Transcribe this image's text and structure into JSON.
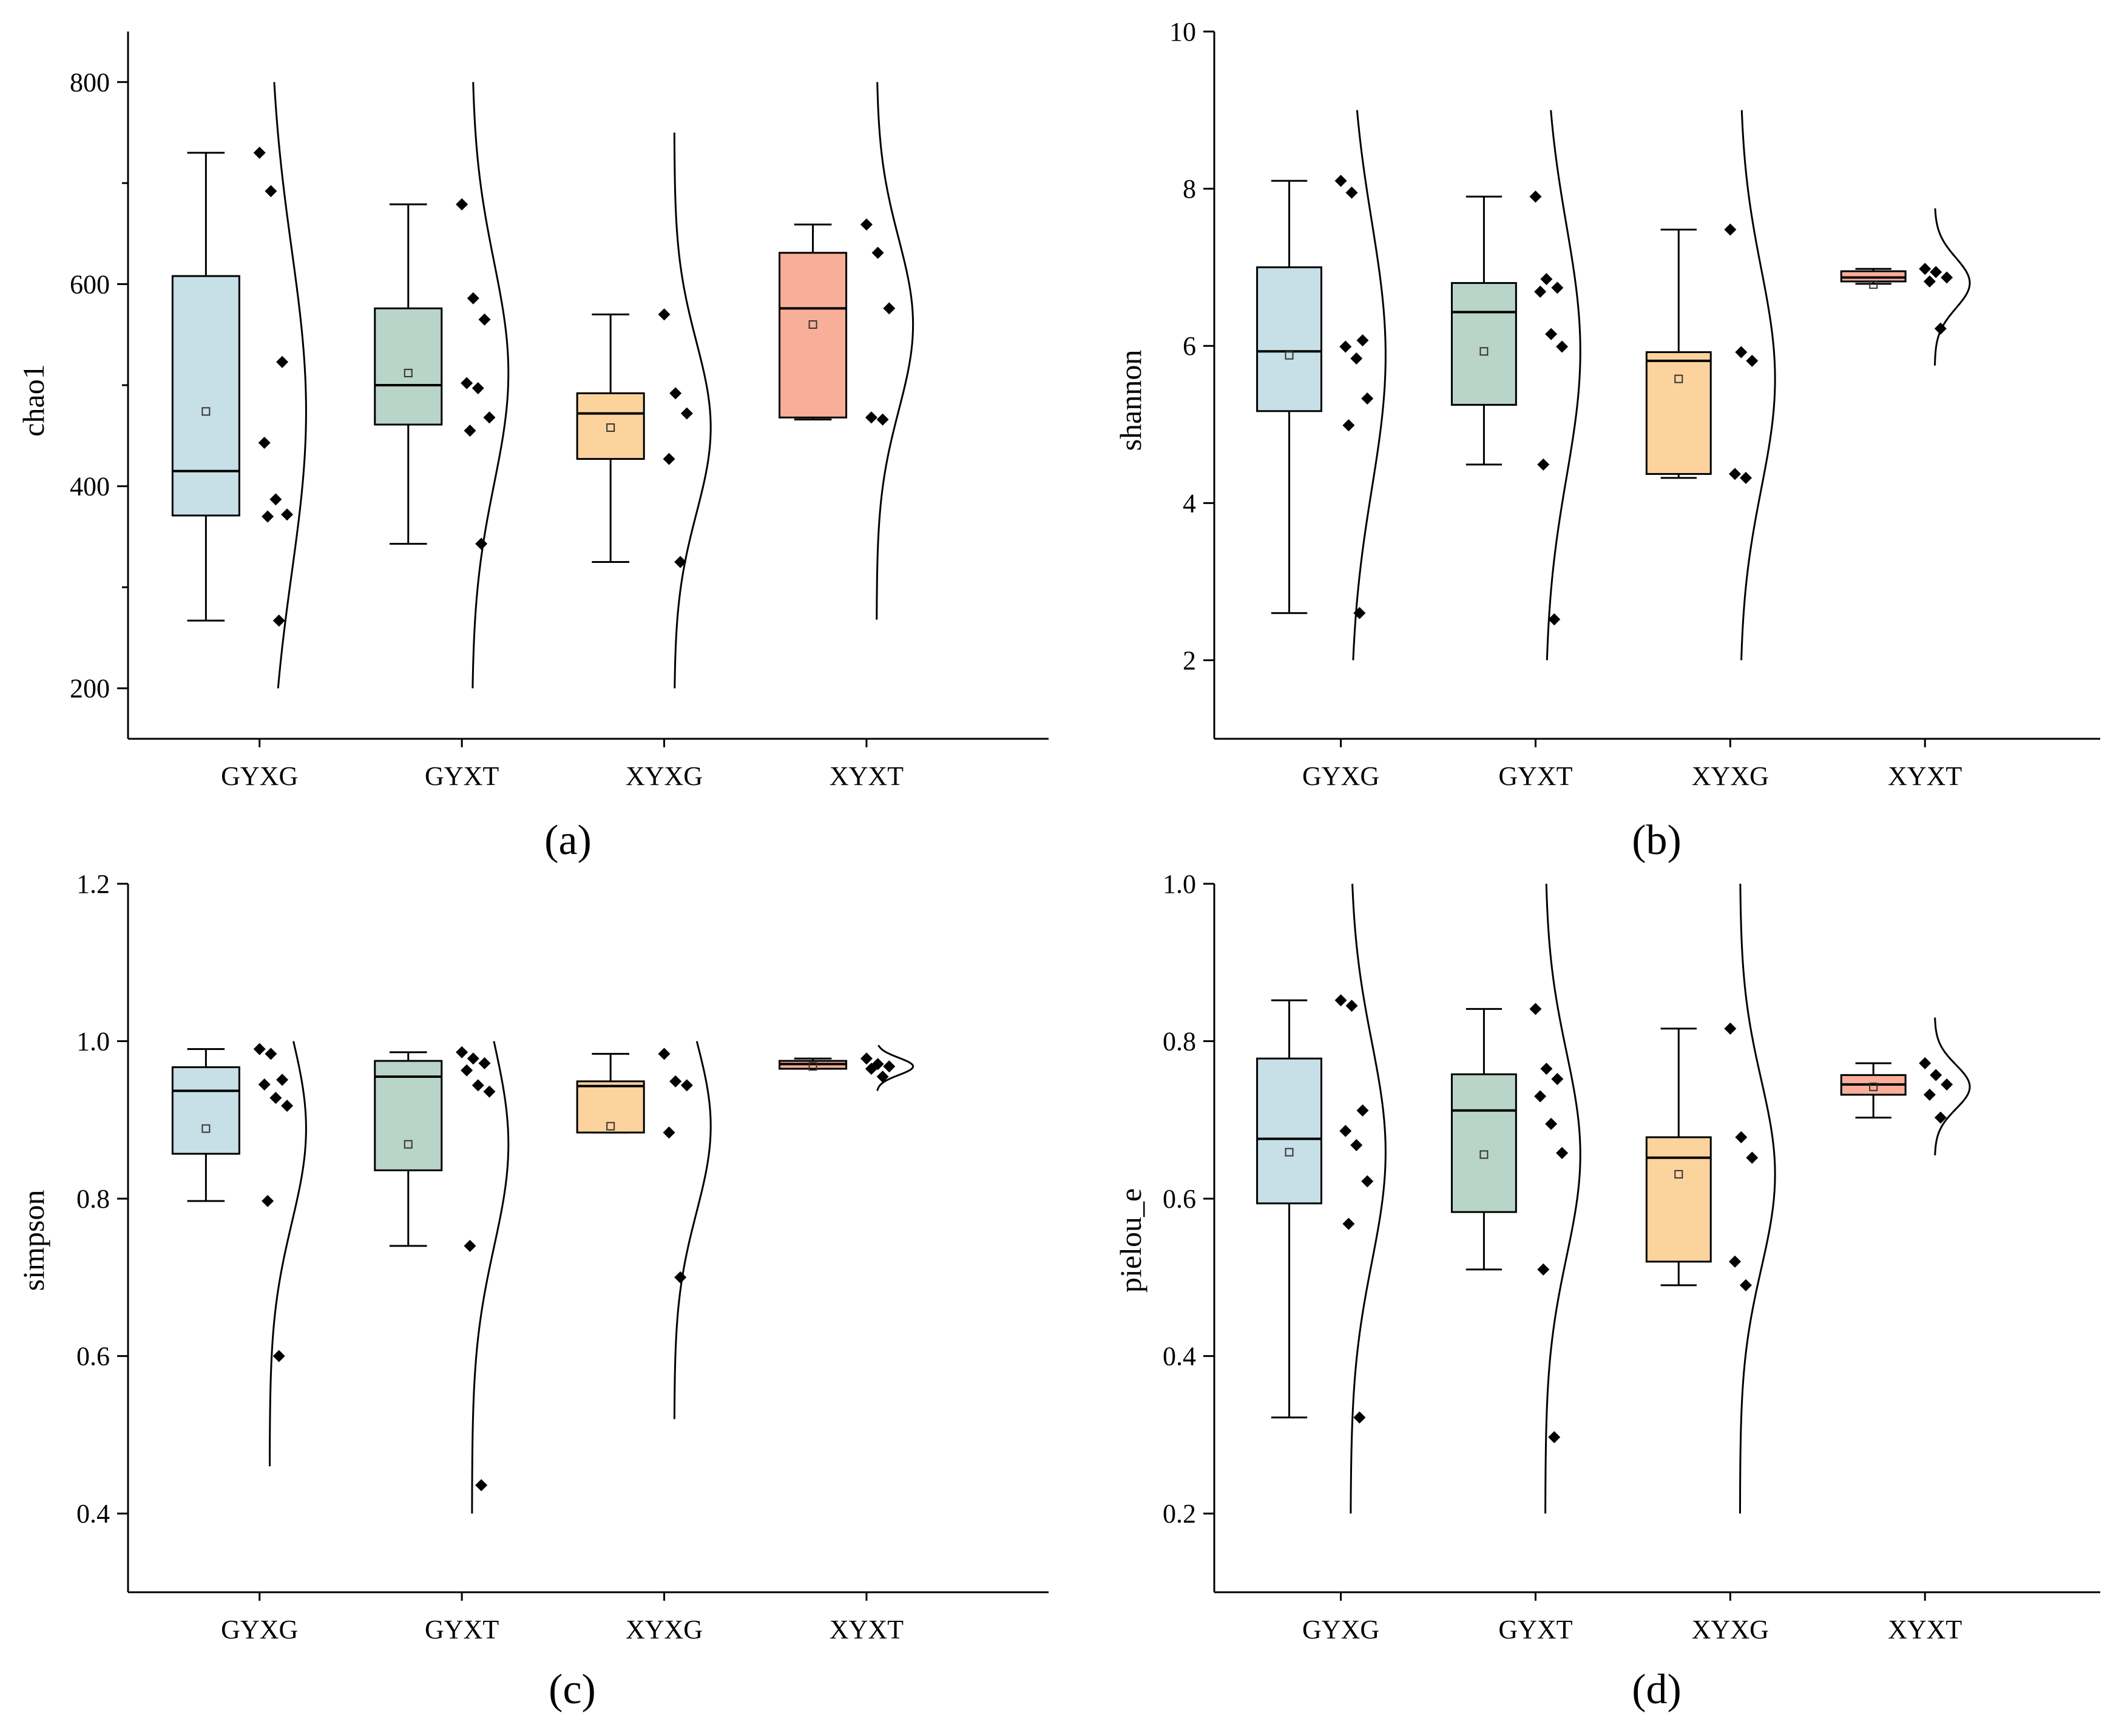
{
  "figure": {
    "description_free": true,
    "panel_order": [
      "a",
      "b",
      "c",
      "d"
    ]
  },
  "colors": {
    "GYXG": "#c7dfe6",
    "GYXT": "#b9d4c8",
    "XYXG": "#fdd39d",
    "XYXT": "#f8ae98",
    "axis": "#000000",
    "point": "#000000"
  },
  "chart_data": [
    {
      "id": "a",
      "type": "box",
      "caption": "(a)",
      "ylabel": "chao1",
      "categories": [
        "GYXG",
        "GYXT",
        "XYXG",
        "XYXT"
      ],
      "ylim": [
        150,
        850
      ],
      "yticks": [
        200,
        400,
        600,
        800
      ],
      "ytick_labels": [
        "200",
        "400",
        "600",
        "800"
      ],
      "minor_ticks": [
        300,
        500,
        700
      ],
      "groups": [
        {
          "name": "GYXG",
          "min": 267,
          "q1": 371,
          "median": 415,
          "q3": 608,
          "max": 730,
          "mean": 474,
          "points": [
            730,
            692,
            523,
            443,
            387,
            372,
            370,
            267
          ],
          "curve": {
            "mu": 474,
            "sigma": 160,
            "range": [
              200,
              800
            ]
          }
        },
        {
          "name": "GYXT",
          "min": 343,
          "q1": 461,
          "median": 500,
          "q3": 576,
          "max": 679,
          "mean": 512,
          "points": [
            679,
            586,
            565,
            502,
            497,
            468,
            455,
            343
          ],
          "curve": {
            "mu": 512,
            "sigma": 110,
            "range": [
              200,
              800
            ]
          }
        },
        {
          "name": "XYXG",
          "min": 325,
          "q1": 427,
          "median": 472,
          "q3": 492,
          "max": 570,
          "mean": 458,
          "points": [
            570,
            492,
            472,
            427,
            325
          ],
          "curve": {
            "mu": 458,
            "sigma": 85,
            "range": [
              200,
              750
            ]
          }
        },
        {
          "name": "XYXT",
          "min": 466,
          "q1": 468,
          "median": 576,
          "q3": 631,
          "max": 659,
          "mean": 560,
          "points": [
            659,
            631,
            576,
            468,
            466
          ],
          "curve": {
            "mu": 560,
            "sigma": 85,
            "range": [
              268,
              800
            ]
          }
        }
      ]
    },
    {
      "id": "b",
      "type": "box",
      "caption": "(b)",
      "ylabel": "shannon",
      "categories": [
        "GYXG",
        "GYXT",
        "XYXG",
        "XYXT"
      ],
      "ylim": [
        1,
        10
      ],
      "yticks": [
        2,
        4,
        6,
        8,
        10
      ],
      "ytick_labels": [
        "2",
        "4",
        "6",
        "8",
        "10"
      ],
      "minor_ticks": [],
      "groups": [
        {
          "name": "GYXG",
          "min": 2.6,
          "q1": 5.17,
          "median": 5.93,
          "q3": 7.0,
          "max": 8.1,
          "mean": 5.88,
          "points": [
            8.1,
            7.95,
            6.07,
            5.99,
            5.84,
            5.33,
            4.99,
            2.6
          ],
          "curve": {
            "mu": 5.88,
            "sigma": 1.7,
            "range": [
              2,
              9
            ]
          }
        },
        {
          "name": "GYXT",
          "min": 4.49,
          "q1": 5.25,
          "median": 6.43,
          "q3": 6.8,
          "max": 7.9,
          "mean": 5.93,
          "points": [
            7.9,
            6.85,
            6.74,
            6.69,
            6.15,
            5.99,
            4.49,
            2.52
          ],
          "curve": {
            "mu": 5.93,
            "sigma": 1.6,
            "range": [
              2,
              9
            ]
          }
        },
        {
          "name": "XYXG",
          "min": 4.32,
          "q1": 4.37,
          "median": 5.81,
          "q3": 5.92,
          "max": 7.48,
          "mean": 5.58,
          "points": [
            7.48,
            5.92,
            5.81,
            4.37,
            4.32
          ],
          "curve": {
            "mu": 5.58,
            "sigma": 1.4,
            "range": [
              2,
              9
            ]
          }
        },
        {
          "name": "XYXT",
          "min": 6.79,
          "q1": 6.82,
          "median": 6.87,
          "q3": 6.95,
          "max": 6.98,
          "mean": 6.78,
          "points": [
            6.98,
            6.94,
            6.87,
            6.82,
            6.22
          ],
          "curve": {
            "mu": 6.8,
            "sigma": 0.32,
            "range": [
              5.75,
              7.75
            ]
          }
        }
      ]
    },
    {
      "id": "c",
      "type": "box",
      "caption": "(c)",
      "ylabel": "simpson",
      "categories": [
        "GYXG",
        "GYXT",
        "XYXG",
        "XYXT"
      ],
      "ylim": [
        0.3,
        1.2
      ],
      "yticks": [
        0.4,
        0.6,
        0.8,
        1.0,
        1.2
      ],
      "ytick_labels": [
        "0.4",
        "0.6",
        "0.8",
        "1.0",
        "1.2"
      ],
      "minor_ticks": [],
      "groups": [
        {
          "name": "GYXG",
          "min": 0.797,
          "q1": 0.857,
          "median": 0.937,
          "q3": 0.967,
          "max": 0.99,
          "mean": 0.889,
          "points": [
            0.99,
            0.984,
            0.951,
            0.945,
            0.928,
            0.918,
            0.797,
            0.6
          ],
          "curve": {
            "mu": 0.889,
            "sigma": 0.12,
            "range": [
              0.46,
              1.0
            ]
          }
        },
        {
          "name": "GYXT",
          "min": 0.74,
          "q1": 0.836,
          "median": 0.955,
          "q3": 0.975,
          "max": 0.986,
          "mean": 0.869,
          "points": [
            0.986,
            0.978,
            0.972,
            0.963,
            0.944,
            0.936,
            0.74,
            0.436
          ],
          "curve": {
            "mu": 0.869,
            "sigma": 0.13,
            "range": [
              0.4,
              1.0
            ]
          }
        },
        {
          "name": "XYXG",
          "min": 0.884,
          "q1": 0.884,
          "median": 0.943,
          "q3": 0.949,
          "max": 0.984,
          "mean": 0.892,
          "points": [
            0.984,
            0.949,
            0.944,
            0.884,
            0.7
          ],
          "curve": {
            "mu": 0.892,
            "sigma": 0.11,
            "range": [
              0.52,
              1.0
            ]
          }
        },
        {
          "name": "XYXT",
          "min": 0.965,
          "q1": 0.965,
          "median": 0.971,
          "q3": 0.975,
          "max": 0.978,
          "mean": 0.968,
          "points": [
            0.978,
            0.971,
            0.968,
            0.965,
            0.955
          ],
          "curve": {
            "mu": 0.968,
            "sigma": 0.011,
            "range": [
              0.937,
              0.995
            ]
          }
        }
      ]
    },
    {
      "id": "d",
      "type": "box",
      "caption": "(d)",
      "ylabel": "pielou_e",
      "categories": [
        "GYXG",
        "GYXT",
        "XYXG",
        "XYXT"
      ],
      "ylim": [
        0.1,
        1.0
      ],
      "yticks": [
        0.2,
        0.4,
        0.6,
        0.8,
        1.0
      ],
      "ytick_labels": [
        "0.2",
        "0.4",
        "0.6",
        "0.8",
        "1.0"
      ],
      "minor_ticks": [],
      "groups": [
        {
          "name": "GYXG",
          "min": 0.322,
          "q1": 0.594,
          "median": 0.676,
          "q3": 0.778,
          "max": 0.852,
          "mean": 0.659,
          "points": [
            0.852,
            0.845,
            0.712,
            0.686,
            0.668,
            0.622,
            0.568,
            0.322
          ],
          "curve": {
            "mu": 0.659,
            "sigma": 0.14,
            "range": [
              0.2,
              1.0
            ]
          }
        },
        {
          "name": "GYXT",
          "min": 0.51,
          "q1": 0.583,
          "median": 0.712,
          "q3": 0.758,
          "max": 0.841,
          "mean": 0.656,
          "points": [
            0.841,
            0.765,
            0.752,
            0.73,
            0.695,
            0.658,
            0.51,
            0.297
          ],
          "curve": {
            "mu": 0.656,
            "sigma": 0.13,
            "range": [
              0.2,
              1.0
            ]
          }
        },
        {
          "name": "XYXG",
          "min": 0.49,
          "q1": 0.52,
          "median": 0.652,
          "q3": 0.678,
          "max": 0.816,
          "mean": 0.631,
          "points": [
            0.816,
            0.678,
            0.652,
            0.52,
            0.49
          ],
          "curve": {
            "mu": 0.631,
            "sigma": 0.12,
            "range": [
              0.2,
              1.0
            ]
          }
        },
        {
          "name": "XYXT",
          "min": 0.703,
          "q1": 0.732,
          "median": 0.745,
          "q3": 0.757,
          "max": 0.772,
          "mean": 0.742,
          "points": [
            0.772,
            0.757,
            0.745,
            0.732,
            0.703
          ],
          "curve": {
            "mu": 0.742,
            "sigma": 0.028,
            "range": [
              0.655,
              0.83
            ]
          }
        }
      ]
    }
  ]
}
